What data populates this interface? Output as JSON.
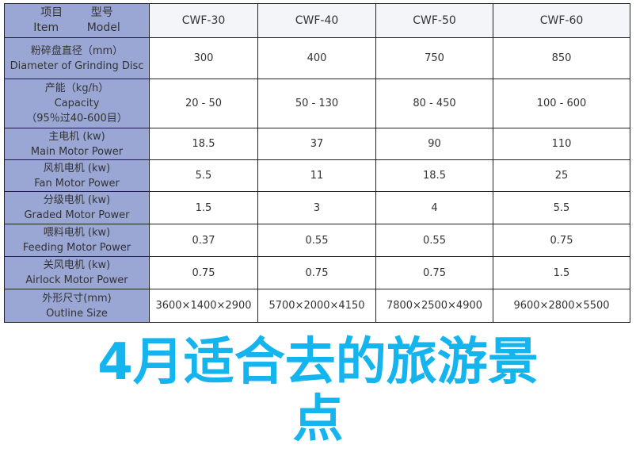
{
  "header": {
    "item_cn": "项目",
    "item_en": "Item",
    "model_cn": "型号",
    "model_en": "Model",
    "models": [
      "CWF-30",
      "CWF-40",
      "CWF-50",
      "CWF-60"
    ]
  },
  "rows": [
    {
      "cn": "粉碎盘直径（mm）",
      "en": "Diameter of Grinding Disc",
      "extra": "",
      "values": [
        "300",
        "400",
        "750",
        "850"
      ]
    },
    {
      "cn": "产能（kg/h）",
      "en": "Capacity",
      "extra": "（95％过40-600目）",
      "values": [
        "20 - 50",
        "50 - 130",
        "80 - 450",
        "100 - 600"
      ]
    },
    {
      "cn": "主电机 (kw)",
      "en": "Main Motor Power",
      "extra": "",
      "values": [
        "18.5",
        "37",
        "90",
        "110"
      ]
    },
    {
      "cn": "风机电机 (kw)",
      "en": "Fan Motor Power",
      "extra": "",
      "values": [
        "5.5",
        "11",
        "18.5",
        "25"
      ]
    },
    {
      "cn": "分级电机 (kw)",
      "en": "Graded Motor Power",
      "extra": "",
      "values": [
        "1.5",
        "3",
        "4",
        "5.5"
      ]
    },
    {
      "cn": "喂料电机 (kw)",
      "en": "Feeding Motor Power",
      "extra": "",
      "values": [
        "0.37",
        "0.55",
        "0.55",
        "0.75"
      ]
    },
    {
      "cn": "关风电机 (kw)",
      "en": "Airlock Motor Power",
      "extra": "",
      "values": [
        "0.75",
        "0.75",
        "0.75",
        "1.5"
      ]
    },
    {
      "cn": "外形尺寸(mm)",
      "en": "Outline Size",
      "extra": "",
      "values": [
        "3600×1400×2900",
        "5700×2000×4150",
        "7800×2500×4900",
        "9600×2800×5500"
      ]
    }
  ],
  "overlay": {
    "line1": "4月适合去的旅游景",
    "line2": "点",
    "color": "#14b4ef"
  }
}
